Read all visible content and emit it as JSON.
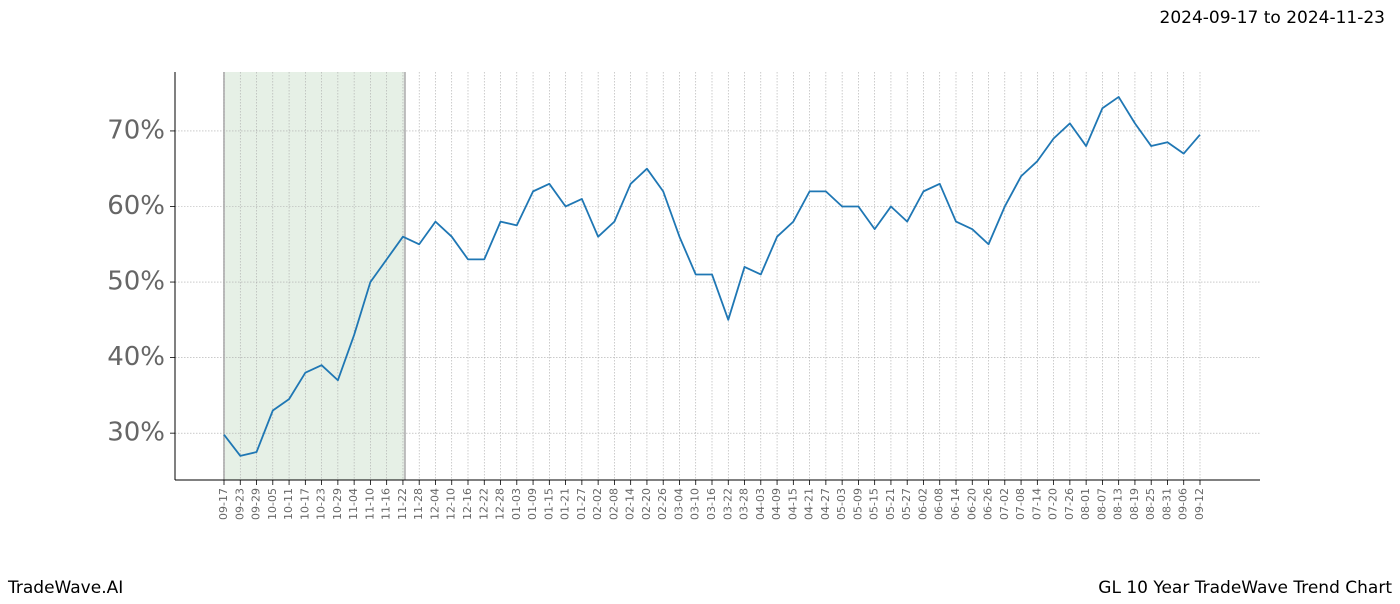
{
  "chart_data": {
    "type": "line",
    "title": "GL 10 Year TradeWave Trend Chart",
    "subtitle": "2024-09-17 to 2024-11-23",
    "brand": "TradeWave.AI",
    "categories": [
      "09-17",
      "09-23",
      "09-29",
      "10-05",
      "10-11",
      "10-17",
      "10-23",
      "10-29",
      "11-04",
      "11-10",
      "11-16",
      "11-22",
      "11-28",
      "12-04",
      "12-10",
      "12-16",
      "12-22",
      "12-28",
      "01-03",
      "01-09",
      "01-15",
      "01-21",
      "01-27",
      "02-02",
      "02-08",
      "02-14",
      "02-20",
      "02-26",
      "03-04",
      "03-10",
      "03-16",
      "03-22",
      "03-28",
      "04-03",
      "04-09",
      "04-15",
      "04-21",
      "04-27",
      "05-03",
      "05-09",
      "05-15",
      "05-21",
      "05-27",
      "06-02",
      "06-08",
      "06-14",
      "06-20",
      "06-26",
      "07-02",
      "07-08",
      "07-14",
      "07-20",
      "07-26",
      "08-01",
      "08-07",
      "08-13",
      "08-19",
      "08-25",
      "08-31",
      "09-06",
      "09-12"
    ],
    "series": [
      {
        "color": "#1f77b4",
        "values": [
          29.8,
          27,
          27.5,
          33,
          34.5,
          38,
          39,
          37,
          43,
          50,
          53,
          56,
          55,
          58,
          56,
          53,
          53,
          58,
          57.5,
          62,
          63,
          60,
          61,
          56,
          58,
          63,
          65,
          62,
          56,
          51,
          51,
          45,
          52,
          51,
          56,
          58,
          62,
          62,
          60,
          60,
          57,
          60,
          58,
          62,
          63,
          58,
          57,
          55,
          60,
          64,
          66,
          69,
          71,
          68,
          73,
          74.5,
          71,
          68,
          68.5,
          67,
          69.5
        ]
      }
    ],
    "ylim": [
      23.8,
      77.8
    ],
    "yticks": [
      {
        "value": 30,
        "label": "30%"
      },
      {
        "value": 40,
        "label": "40%"
      },
      {
        "value": 50,
        "label": "50%"
      },
      {
        "value": 60,
        "label": "60%"
      },
      {
        "value": 70,
        "label": "70%"
      }
    ],
    "grid": true,
    "shade": {
      "from": "09-17",
      "to": "11-22",
      "color": "#e6f0e6"
    }
  }
}
